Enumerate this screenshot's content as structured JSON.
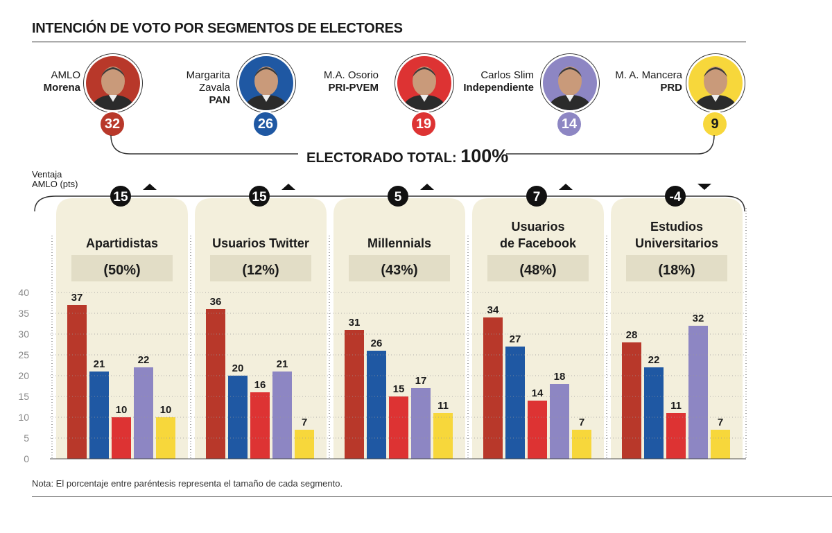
{
  "title": "INTENCIÓN DE VOTO POR SEGMENTOS DE ELECTORES",
  "candidates": [
    {
      "name": "AMLO",
      "party": "Morena",
      "score": "32",
      "color": "#b8382a",
      "photo_bg": "#b8382a"
    },
    {
      "name": "Margarita Zavala",
      "party": "PAN",
      "score": "26",
      "color": "#1f58a3",
      "photo_bg": "#1f58a3"
    },
    {
      "name": "M.A. Osorio",
      "party": "PRI-PVEM",
      "score": "19",
      "color": "#dd3333",
      "photo_bg": "#dd3333"
    },
    {
      "name": "Carlos Slim",
      "party": "Independiente",
      "score": "14",
      "color": "#8d86c3",
      "photo_bg": "#8d86c3"
    },
    {
      "name": "M. A. Mancera",
      "party": "PRD",
      "score": "9",
      "color": "#f7d73b",
      "photo_bg": "#f7d73b"
    }
  ],
  "total_label": "ELECTORADO TOTAL:",
  "total_value": "100%",
  "ventaja_label": [
    "Ventaja",
    "AMLO (pts)"
  ],
  "note": "Nota: El porcentaje entre paréntesis representa el tamaño de cada segmento.",
  "chart_data": {
    "type": "bar",
    "ylim": [
      0,
      40
    ],
    "yticks": [
      0,
      5,
      10,
      15,
      20,
      25,
      30,
      35,
      40
    ],
    "series_colors": [
      "#b8382a",
      "#1f58a3",
      "#dd3333",
      "#8d86c3",
      "#f7d73b"
    ],
    "series_names": [
      "AMLO",
      "Margarita Zavala",
      "M.A. Osorio",
      "Carlos Slim",
      "M. A. Mancera"
    ],
    "groups": [
      {
        "label": [
          "Apartidistas"
        ],
        "share": "(50%)",
        "advantage": "15",
        "trend": "up",
        "values": [
          37,
          21,
          10,
          22,
          10
        ]
      },
      {
        "label": [
          "Usuarios Twitter"
        ],
        "share": "(12%)",
        "advantage": "15",
        "trend": "up",
        "values": [
          36,
          20,
          16,
          21,
          7
        ]
      },
      {
        "label": [
          "Millennials"
        ],
        "share": "(43%)",
        "advantage": "5",
        "trend": "up",
        "values": [
          31,
          26,
          15,
          17,
          11
        ]
      },
      {
        "label": [
          "Usuarios",
          "de Facebook"
        ],
        "share": "(48%)",
        "advantage": "7",
        "trend": "up",
        "values": [
          34,
          27,
          14,
          18,
          7
        ]
      },
      {
        "label": [
          "Estudios",
          "Universitarios"
        ],
        "share": "(18%)",
        "advantage": "-4",
        "trend": "down",
        "values": [
          28,
          22,
          11,
          32,
          7
        ]
      }
    ]
  }
}
